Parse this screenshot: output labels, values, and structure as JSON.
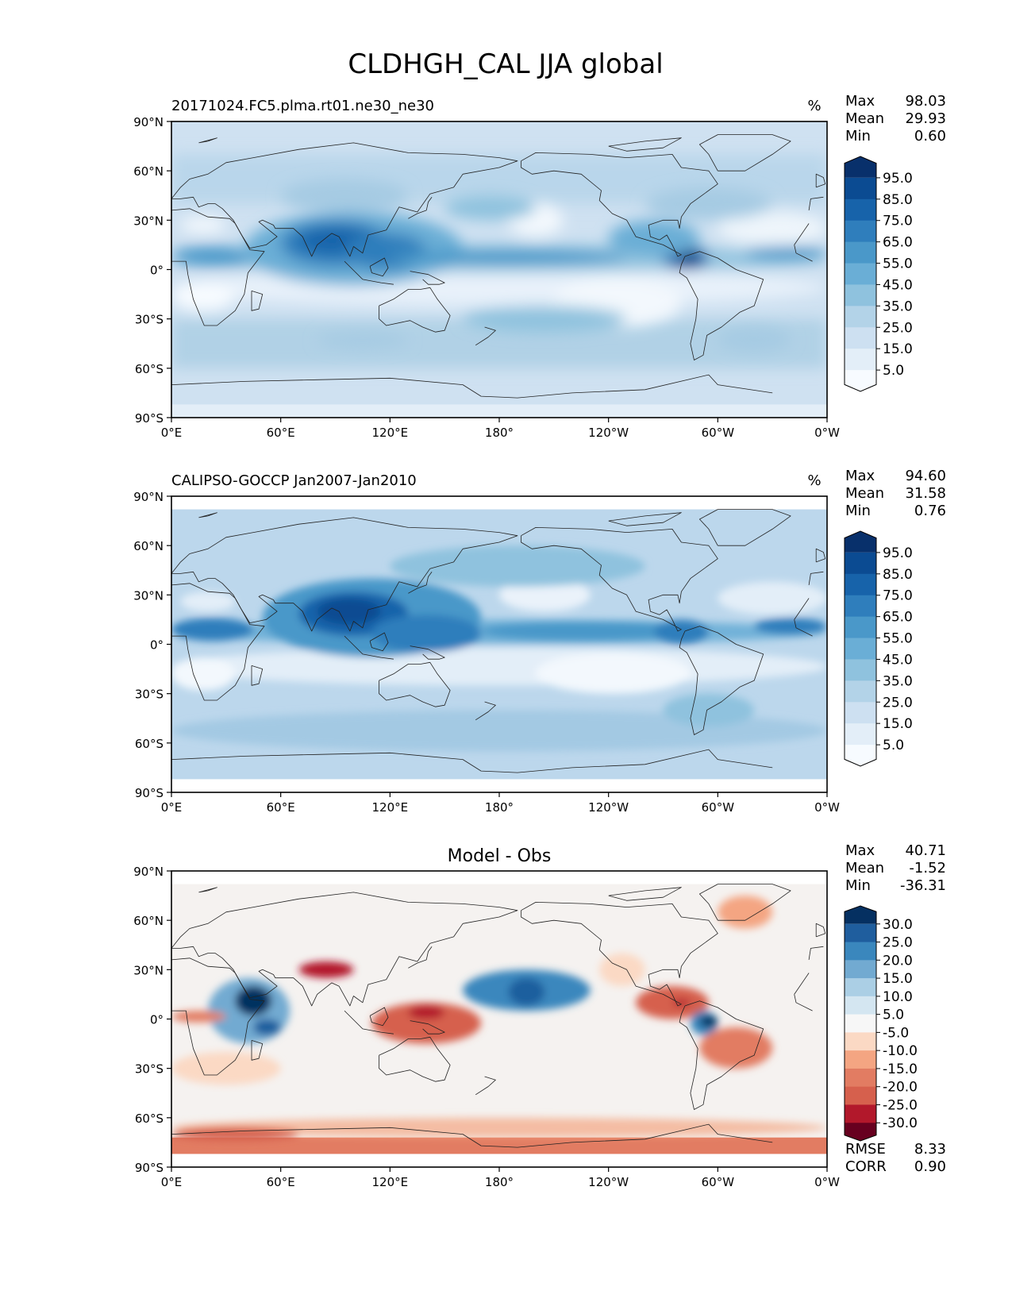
{
  "figure": {
    "title": "CLDHGH_CAL JJA global"
  },
  "axes": {
    "lat_labels": [
      "90°N",
      "60°N",
      "30°N",
      "0°",
      "30°S",
      "60°S",
      "90°S"
    ],
    "lon_labels": [
      "0°E",
      "60°E",
      "120°E",
      "180°",
      "120°W",
      "60°W",
      "0°W"
    ]
  },
  "panels": [
    {
      "left_title": "20171024.FC5.plma.rt01.ne30_ne30",
      "center_title": "",
      "units": "%",
      "stats": [
        {
          "label": "Max",
          "value": "98.03"
        },
        {
          "label": "Mean",
          "value": "29.93"
        },
        {
          "label": "Min",
          "value": "0.60"
        }
      ],
      "colorbar_ticks": [
        "95.0",
        "85.0",
        "75.0",
        "65.0",
        "55.0",
        "45.0",
        "35.0",
        "25.0",
        "15.0",
        "5.0"
      ],
      "colorbar_colors": [
        "#08306b",
        "#0b4b92",
        "#1763aa",
        "#2f7ebc",
        "#4a98c9",
        "#6aaed6",
        "#8fc2de",
        "#b3d3e8",
        "#cde0f1",
        "#e3eef8",
        "#f7fbff"
      ],
      "field": "model",
      "metrics": []
    },
    {
      "left_title": "CALIPSO-GOCCP Jan2007-Jan2010",
      "center_title": "",
      "units": "%",
      "stats": [
        {
          "label": "Max",
          "value": "94.60"
        },
        {
          "label": "Mean",
          "value": "31.58"
        },
        {
          "label": "Min",
          "value": "0.76"
        }
      ],
      "colorbar_ticks": [
        "95.0",
        "85.0",
        "75.0",
        "65.0",
        "55.0",
        "45.0",
        "35.0",
        "25.0",
        "15.0",
        "5.0"
      ],
      "colorbar_colors": [
        "#08306b",
        "#0b4b92",
        "#1763aa",
        "#2f7ebc",
        "#4a98c9",
        "#6aaed6",
        "#8fc2de",
        "#b3d3e8",
        "#cde0f1",
        "#e3eef8",
        "#f7fbff"
      ],
      "field": "obs",
      "metrics": []
    },
    {
      "left_title": "",
      "center_title": "Model - Obs",
      "units": "",
      "stats": [
        {
          "label": "Max",
          "value": "40.71"
        },
        {
          "label": "Mean",
          "value": "-1.52"
        },
        {
          "label": "Min",
          "value": "-36.31"
        }
      ],
      "colorbar_ticks": [
        "30.0",
        "25.0",
        "20.0",
        "15.0",
        "10.0",
        "5.0",
        "-5.0",
        "-10.0",
        "-15.0",
        "-20.0",
        "-25.0",
        "-30.0"
      ],
      "colorbar_colors": [
        "#053061",
        "#1f5e9e",
        "#3a87bd",
        "#72aad1",
        "#abcfe5",
        "#d4e6f1",
        "#f7f7f7",
        "#fbd9c4",
        "#f4a582",
        "#e27c62",
        "#d6604d",
        "#b2182b",
        "#67001f"
      ],
      "field": "diff",
      "metrics": [
        {
          "label": "RMSE",
          "value": "8.33"
        },
        {
          "label": "CORR",
          "value": "0.90"
        }
      ]
    }
  ],
  "chart_data": [
    {
      "type": "heatmap",
      "title": "20171024.FC5.plma.rt01.ne30_ne30",
      "units": "%",
      "xlim": [
        0,
        360
      ],
      "ylim": [
        -90,
        90
      ],
      "stats": {
        "max": 98.03,
        "mean": 29.93,
        "min": 0.6
      },
      "colorbar_levels": [
        5,
        15,
        25,
        35,
        45,
        55,
        65,
        75,
        85,
        95
      ]
    },
    {
      "type": "heatmap",
      "title": "CALIPSO-GOCCP Jan2007-Jan2010",
      "units": "%",
      "xlim": [
        0,
        360
      ],
      "ylim": [
        -90,
        90
      ],
      "stats": {
        "max": 94.6,
        "mean": 31.58,
        "min": 0.76
      },
      "colorbar_levels": [
        5,
        15,
        25,
        35,
        45,
        55,
        65,
        75,
        85,
        95
      ]
    },
    {
      "type": "heatmap",
      "title": "Model - Obs",
      "xlim": [
        0,
        360
      ],
      "ylim": [
        -90,
        90
      ],
      "stats": {
        "max": 40.71,
        "mean": -1.52,
        "min": -36.31,
        "rmse": 8.33,
        "corr": 0.9
      },
      "colorbar_levels": [
        -30,
        -25,
        -20,
        -15,
        -10,
        -5,
        5,
        10,
        15,
        20,
        25,
        30
      ]
    }
  ]
}
